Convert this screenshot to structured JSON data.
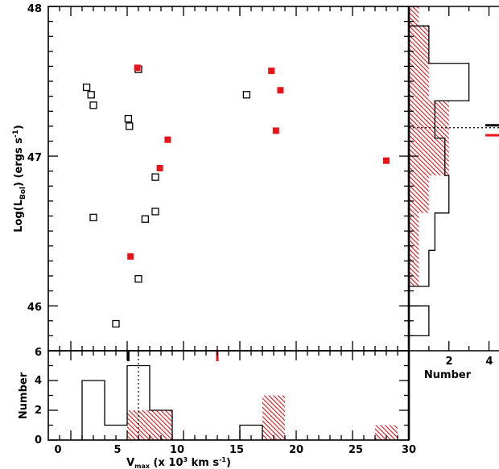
{
  "chart_data": [
    {
      "type": "scatter",
      "panel": "main",
      "xlim": [
        -2,
        30
      ],
      "ylim": [
        45.7,
        48
      ],
      "ylabel_parts": {
        "main": "Log(L",
        "sub": "Bol",
        "close": ") (ergs s",
        "sup": "-1",
        "end": ")"
      },
      "yticks": [
        "46",
        "47",
        "48"
      ],
      "colors": {
        "open": "#000000",
        "filled": "#e8141a"
      },
      "series": [
        {
          "marker": "open-square",
          "points": [
            {
              "x": 1.4,
              "y": 47.46
            },
            {
              "x": 1.8,
              "y": 47.41
            },
            {
              "x": 2.0,
              "y": 47.34
            },
            {
              "x": 5.1,
              "y": 47.25
            },
            {
              "x": 5.2,
              "y": 47.2
            },
            {
              "x": 6.0,
              "y": 47.58
            },
            {
              "x": 15.6,
              "y": 47.41
            },
            {
              "x": 7.5,
              "y": 46.86
            },
            {
              "x": 2.0,
              "y": 46.59
            },
            {
              "x": 6.6,
              "y": 46.58
            },
            {
              "x": 7.5,
              "y": 46.63
            },
            {
              "x": 6.0,
              "y": 46.18
            },
            {
              "x": 4.0,
              "y": 45.88
            }
          ]
        },
        {
          "marker": "filled-square",
          "points": [
            {
              "x": 5.9,
              "y": 47.59
            },
            {
              "x": 17.8,
              "y": 47.57
            },
            {
              "x": 18.6,
              "y": 47.44
            },
            {
              "x": 18.2,
              "y": 47.17
            },
            {
              "x": 8.6,
              "y": 47.11
            },
            {
              "x": 7.9,
              "y": 46.92
            },
            {
              "x": 28.0,
              "y": 46.97
            },
            {
              "x": 5.3,
              "y": 46.33
            }
          ]
        }
      ]
    },
    {
      "type": "histogram",
      "panel": "bottom",
      "xlim": [
        -2,
        30
      ],
      "ylim": [
        0,
        6
      ],
      "xticks": [
        "0",
        "5",
        "10",
        "15",
        "20",
        "25",
        "30"
      ],
      "yticks": [
        "0",
        "2",
        "4"
      ],
      "ylabel": "Number",
      "xlabel_parts": {
        "main": "V",
        "sub": "max",
        "rest": " (x 10",
        "sup": "3",
        "end": " km s",
        "sup2": "-1",
        "close": ")"
      },
      "median_open": 6.0,
      "median_open_marker": 5.1,
      "median_filled_marker": 13.0,
      "series": [
        {
          "style": "outline",
          "bins": [
            {
              "from": 1,
              "to": 3,
              "count": 4
            },
            {
              "from": 3,
              "to": 5,
              "count": 1
            },
            {
              "from": 5,
              "to": 7,
              "count": 5
            },
            {
              "from": 7,
              "to": 9,
              "count": 2
            },
            {
              "from": 9,
              "to": 15,
              "count": 0
            },
            {
              "from": 15,
              "to": 17,
              "count": 1
            },
            {
              "from": 17,
              "to": 19,
              "count": 0
            }
          ]
        },
        {
          "style": "hatched",
          "bins": [
            {
              "from": 5,
              "to": 9,
              "count": 2
            },
            {
              "from": 17,
              "to": 19,
              "count": 3
            },
            {
              "from": 27,
              "to": 29,
              "count": 1
            }
          ]
        }
      ]
    },
    {
      "type": "histogram",
      "panel": "right",
      "orientation": "horizontal",
      "ylim": [
        45.7,
        48
      ],
      "xlim": [
        0,
        4.5
      ],
      "xticks": [
        "2",
        "4"
      ],
      "xlabel": "Number",
      "median_open": 47.19,
      "median_open_marker": 47.19,
      "median_filled_marker": 47.15,
      "series": [
        {
          "style": "outline",
          "bins": [
            {
              "from": 45.7,
              "to": 45.8,
              "count": 0
            },
            {
              "from": 45.8,
              "to": 46.0,
              "count": 1
            },
            {
              "from": 46.0,
              "to": 46.13,
              "count": 0
            },
            {
              "from": 46.13,
              "to": 46.37,
              "count": 1
            },
            {
              "from": 46.37,
              "to": 46.62,
              "count": 1.3
            },
            {
              "from": 46.62,
              "to": 46.87,
              "count": 2
            },
            {
              "from": 46.87,
              "to": 47.12,
              "count": 1.8
            },
            {
              "from": 47.12,
              "to": 47.37,
              "count": 1.3
            },
            {
              "from": 47.37,
              "to": 47.62,
              "count": 3
            },
            {
              "from": 47.62,
              "to": 47.87,
              "count": 1
            }
          ]
        },
        {
          "style": "hatched",
          "bins": [
            {
              "from": 46.13,
              "to": 46.62,
              "count": 0.5
            },
            {
              "from": 46.62,
              "to": 46.87,
              "count": 1
            },
            {
              "from": 46.87,
              "to": 47.37,
              "count": 2
            },
            {
              "from": 47.37,
              "to": 47.87,
              "count": 1
            },
            {
              "from": 47.87,
              "to": 48.0,
              "count": 0.5
            }
          ]
        }
      ]
    }
  ]
}
